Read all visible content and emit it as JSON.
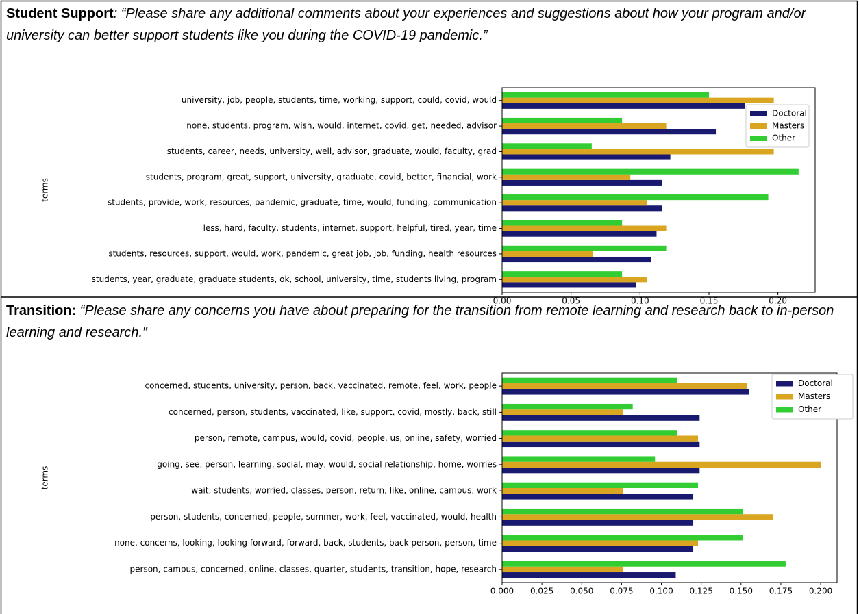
{
  "sections": [
    {
      "label": "Student Support",
      "quote": ": “Please share any additional comments about your experiences and suggestions about how your program and/or university can better support students like you during the COVID-19 pandemic.”"
    },
    {
      "label": "Transition:",
      "quote": "“Please share any concerns you have about preparing for the transition from remote learning and research back to in-person learning and research.”"
    }
  ],
  "chart_data": [
    {
      "type": "barh",
      "ylabel": "terms",
      "legend": "upper right",
      "categories": [
        "university, job, people, students, time, working, support, could, covid, would",
        "none, students, program, wish, would, internet, covid, get, needed, advisor",
        "students, career, needs, university, well, advisor, graduate, would, faculty, grad",
        "students, program, great, support, university, graduate, covid, better, financial, work",
        "students, provide, work, resources, pandemic, graduate, time, would, funding, communication",
        "less, hard, faculty, students, internet, support, helpful, tired, year, time",
        "students, resources, support, would, work, pandemic, great job, job, funding, health resources",
        "students, year, graduate, graduate students, ok, school, university, time, students living, program"
      ],
      "series": [
        {
          "name": "Doctoral",
          "color": "#191970",
          "values": [
            0.176,
            0.155,
            0.122,
            0.116,
            0.116,
            0.112,
            0.108,
            0.097
          ]
        },
        {
          "name": "Masters",
          "color": "#daa520",
          "values": [
            0.197,
            0.119,
            0.197,
            0.093,
            0.105,
            0.119,
            0.066,
            0.105
          ]
        },
        {
          "name": "Other",
          "color": "#32cd32",
          "values": [
            0.15,
            0.087,
            0.065,
            0.215,
            0.193,
            0.087,
            0.119,
            0.087
          ]
        }
      ],
      "xlim": [
        0,
        0.227
      ],
      "xticks": [
        {
          "value": 0,
          "label": "0.00"
        },
        {
          "value": 0.05,
          "label": "0.05"
        },
        {
          "value": 0.1,
          "label": "0.10"
        },
        {
          "value": 0.15,
          "label": "0.15"
        },
        {
          "value": 0.2,
          "label": "0.20"
        }
      ]
    },
    {
      "type": "barh",
      "ylabel": "terms",
      "legend": "upper right",
      "categories": [
        "concerned, students, university, person, back, vaccinated, remote, feel, work, people",
        "concerned, person, students, vaccinated, like, support, covid, mostly, back, still",
        "person, remote, campus, would, covid, people, us, online, safety, worried",
        "going, see, person, learning, social, may, would, social relationship, home, worries",
        "wait, students, worried, classes, person, return, like, online, campus, work",
        "person, students, concerned, people, summer, work, feel, vaccinated, would, health",
        "none, concerns, looking, looking forward, forward, back, students, back person, person, time",
        "person, campus, concerned, online, classes, quarter, students, transition, hope, research"
      ],
      "series": [
        {
          "name": "Doctoral",
          "color": "#191970",
          "values": [
            0.155,
            0.124,
            0.124,
            0.124,
            0.12,
            0.12,
            0.12,
            0.109
          ]
        },
        {
          "name": "Masters",
          "color": "#daa520",
          "values": [
            0.154,
            0.076,
            0.123,
            0.2,
            0.076,
            0.17,
            0.123,
            0.076
          ]
        },
        {
          "name": "Other",
          "color": "#32cd32",
          "values": [
            0.11,
            0.082,
            0.11,
            0.096,
            0.123,
            0.151,
            0.151,
            0.178
          ]
        }
      ],
      "xlim": [
        0,
        0.2103
      ],
      "xticks": [
        {
          "value": 0,
          "label": "0.000"
        },
        {
          "value": 0.025,
          "label": "0.025"
        },
        {
          "value": 0.05,
          "label": "0.050"
        },
        {
          "value": 0.075,
          "label": "0.075"
        },
        {
          "value": 0.1,
          "label": "0.100"
        },
        {
          "value": 0.125,
          "label": "0.125"
        },
        {
          "value": 0.15,
          "label": "0.150"
        },
        {
          "value": 0.175,
          "label": "0.175"
        },
        {
          "value": 0.2,
          "label": "0.200"
        }
      ]
    }
  ]
}
